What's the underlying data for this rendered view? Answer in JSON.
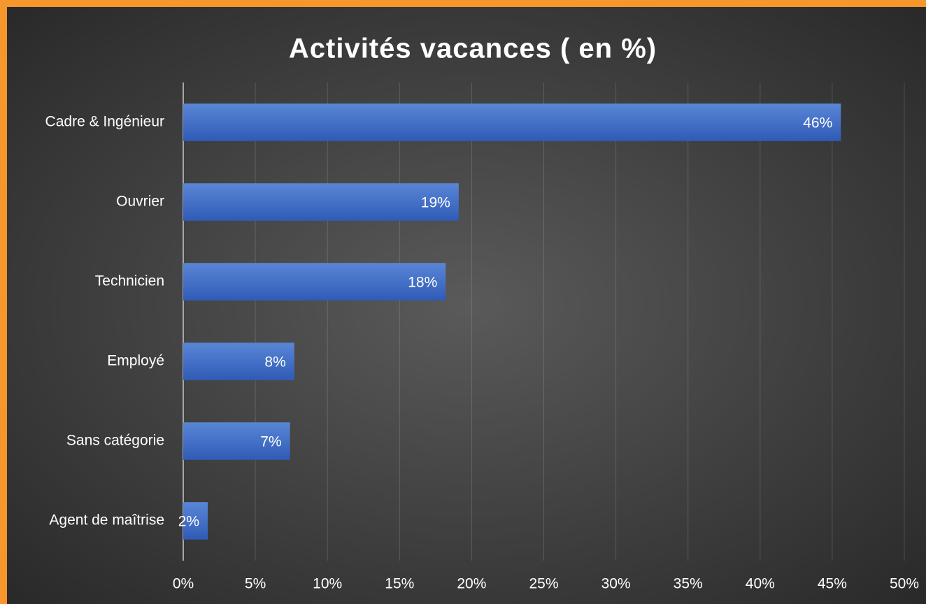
{
  "chart_data": {
    "type": "bar",
    "orientation": "horizontal",
    "title": "Activités vacances ( en %)",
    "categories": [
      "Cadre & Ingénieur",
      "Ouvrier",
      "Technicien",
      "Employé",
      "Sans catégorie",
      "Agent de maîtrise"
    ],
    "values": [
      45.6,
      19.1,
      18.2,
      7.7,
      7.4,
      1.7
    ],
    "value_labels": [
      "46%",
      "19%",
      "18%",
      "8%",
      "7%",
      "2%"
    ],
    "color": "#4472c4",
    "xlim": [
      0,
      50
    ],
    "xticks": [
      {
        "value": 0,
        "label": "0%"
      },
      {
        "value": 5,
        "label": "5%"
      },
      {
        "value": 10,
        "label": "10%"
      },
      {
        "value": 15,
        "label": "15%"
      },
      {
        "value": 20,
        "label": "20%"
      },
      {
        "value": 25,
        "label": "25%"
      },
      {
        "value": 30,
        "label": "30%"
      },
      {
        "value": 35,
        "label": "35%"
      },
      {
        "value": 40,
        "label": "40%"
      },
      {
        "value": 45,
        "label": "45%"
      },
      {
        "value": 50,
        "label": "50%"
      }
    ],
    "grid": true
  }
}
